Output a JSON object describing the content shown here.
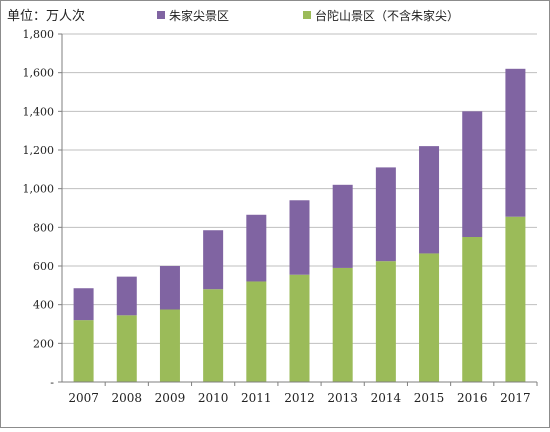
{
  "colors": {
    "series_top": "#8064a2",
    "series_bottom": "#9bbb59",
    "axis": "#7f7f7f",
    "grid": "#bfbfbf",
    "text": "#222222"
  },
  "chart_data": {
    "type": "bar",
    "stacked": true,
    "unit_label": "单位：万人次",
    "categories": [
      "2007",
      "2008",
      "2009",
      "2010",
      "2011",
      "2012",
      "2013",
      "2014",
      "2015",
      "2016",
      "2017"
    ],
    "series": [
      {
        "name": "台陀山景区（不含朱家尖）",
        "values": [
          320,
          345,
          375,
          480,
          520,
          555,
          590,
          625,
          665,
          750,
          855
        ]
      },
      {
        "name": "朱家尖景区",
        "values": [
          165,
          200,
          225,
          305,
          345,
          385,
          430,
          485,
          555,
          650,
          765
        ]
      }
    ],
    "y_ticks": [
      "-",
      "200",
      "400",
      "600",
      "800",
      "1,000",
      "1,200",
      "1,400",
      "1,600",
      "1,800"
    ],
    "ylim": [
      0,
      1800
    ],
    "grid": true,
    "legend_position": "top"
  }
}
